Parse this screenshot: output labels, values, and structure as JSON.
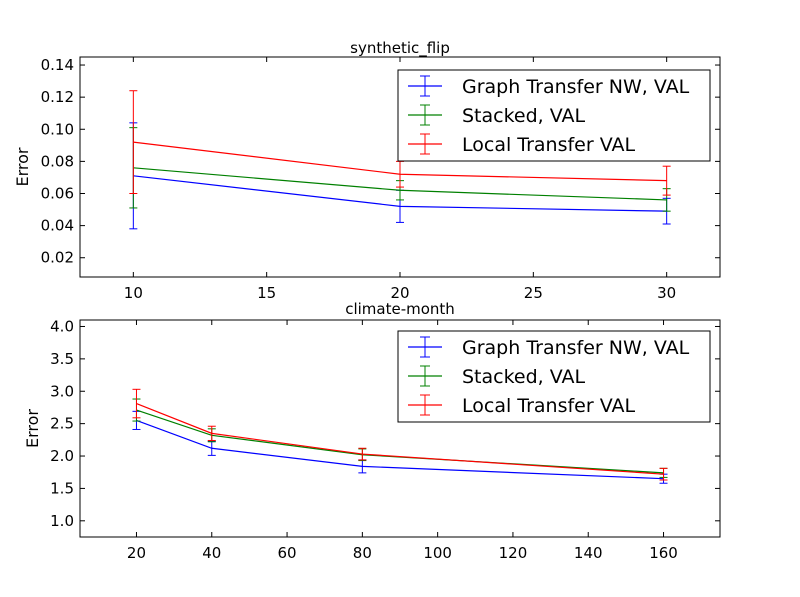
{
  "chart_data": [
    {
      "type": "line",
      "title": "synthetic_flip",
      "xlabel": "",
      "ylabel": "Error",
      "xlim": [
        8,
        32
      ],
      "ylim": [
        0.008,
        0.145
      ],
      "xticks": [
        10,
        15,
        20,
        25,
        30
      ],
      "yticks": [
        0.02,
        0.04,
        0.06,
        0.08,
        0.1,
        0.12,
        0.14
      ],
      "ytick_labels": [
        "0.02",
        "0.04",
        "0.06",
        "0.08",
        "0.10",
        "0.12",
        "0.14"
      ],
      "x": [
        10,
        20,
        30
      ],
      "grid": false,
      "legend_position": "top-right",
      "series": [
        {
          "name": "Graph Transfer NW, VAL",
          "color": "#0000ff",
          "values": [
            0.071,
            0.052,
            0.049
          ],
          "errors": [
            0.033,
            0.01,
            0.008
          ]
        },
        {
          "name": "Stacked, VAL",
          "color": "#008000",
          "values": [
            0.076,
            0.062,
            0.056
          ],
          "errors": [
            0.025,
            0.006,
            0.007
          ]
        },
        {
          "name": "Local Transfer VAL",
          "color": "#ff0000",
          "values": [
            0.092,
            0.072,
            0.068
          ],
          "errors": [
            0.032,
            0.008,
            0.009
          ]
        }
      ]
    },
    {
      "type": "line",
      "title": "climate-month",
      "xlabel": "",
      "ylabel": "Error",
      "xlim": [
        5,
        175
      ],
      "ylim": [
        0.75,
        4.1
      ],
      "xticks": [
        20,
        40,
        60,
        80,
        100,
        120,
        140,
        160
      ],
      "yticks": [
        1.0,
        1.5,
        2.0,
        2.5,
        3.0,
        3.5,
        4.0
      ],
      "ytick_labels": [
        "1.0",
        "1.5",
        "2.0",
        "2.5",
        "3.0",
        "3.5",
        "4.0"
      ],
      "x": [
        20,
        40,
        80,
        160
      ],
      "grid": false,
      "legend_position": "top-right",
      "series": [
        {
          "name": "Graph Transfer NW, VAL",
          "color": "#0000ff",
          "values": [
            2.55,
            2.12,
            1.84,
            1.65
          ],
          "errors": [
            0.14,
            0.11,
            0.1,
            0.07
          ]
        },
        {
          "name": "Stacked, VAL",
          "color": "#008000",
          "values": [
            2.71,
            2.32,
            2.02,
            1.74
          ],
          "errors": [
            0.17,
            0.1,
            0.09,
            0.07
          ]
        },
        {
          "name": "Local Transfer VAL",
          "color": "#ff0000",
          "values": [
            2.81,
            2.35,
            2.03,
            1.72
          ],
          "errors": [
            0.22,
            0.11,
            0.09,
            0.09
          ]
        }
      ]
    }
  ]
}
